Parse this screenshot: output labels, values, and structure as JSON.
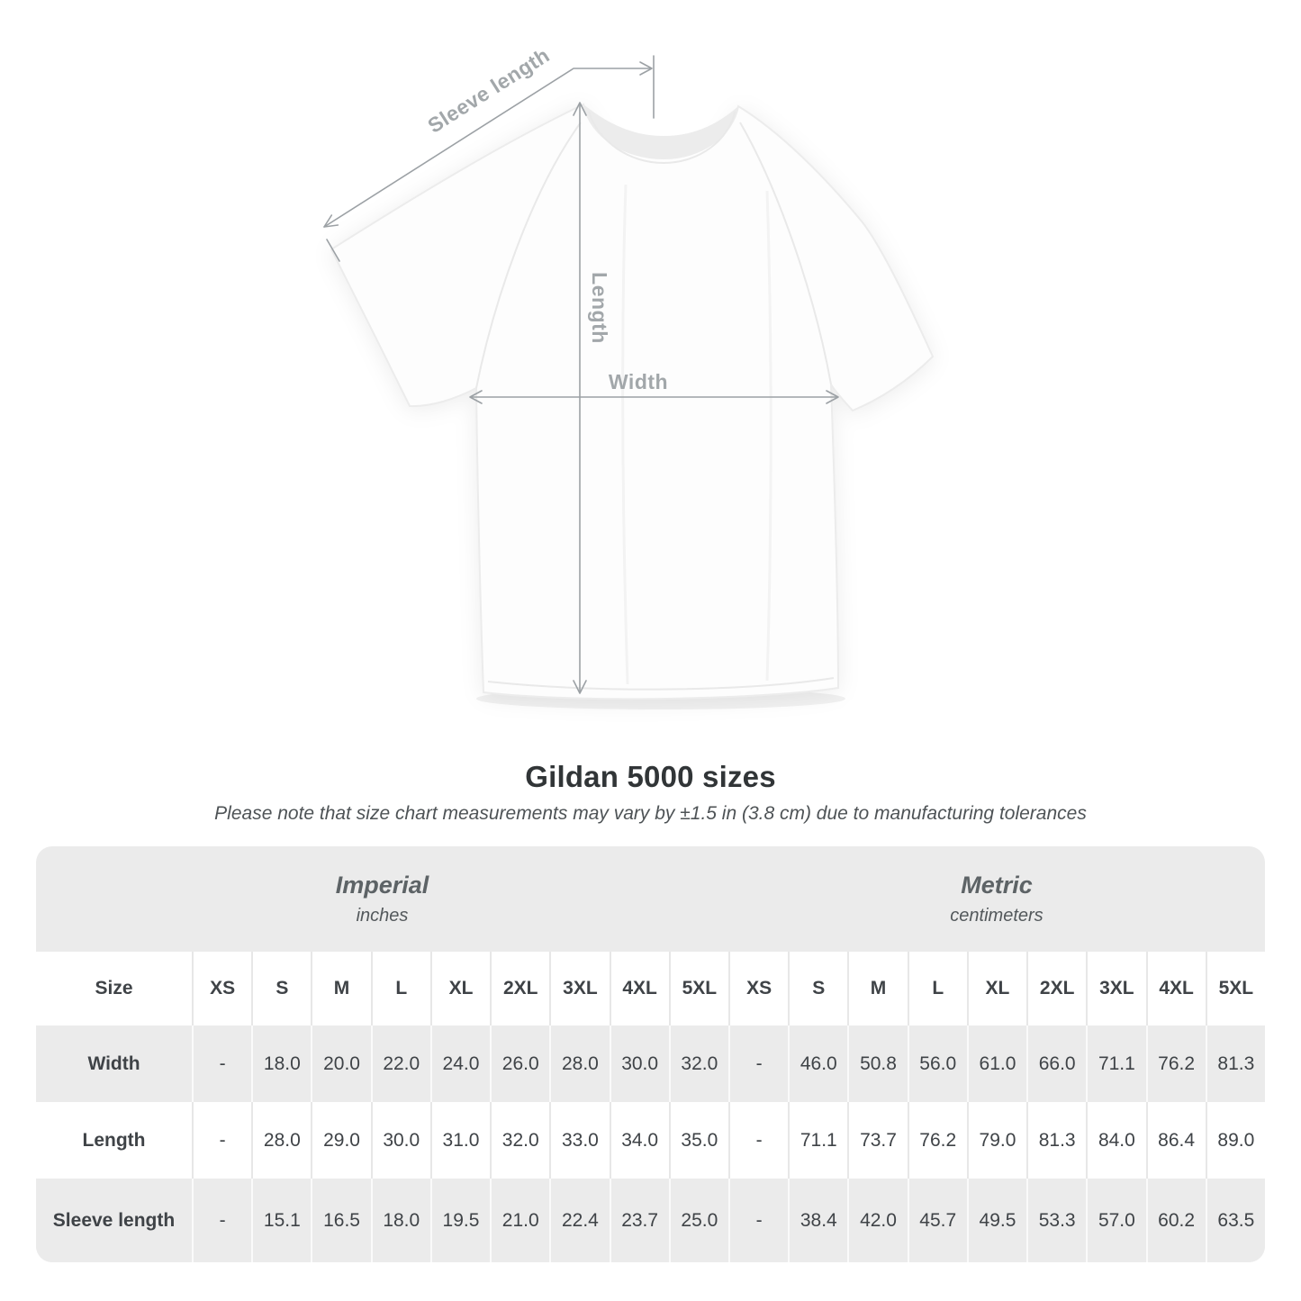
{
  "diagram": {
    "sleeve_label": "Sleeve length",
    "length_label": "Length",
    "width_label": "Width",
    "line_color": "#9ca1a5",
    "label_color": "#a2a7aa"
  },
  "colors": {
    "stripe_gray": "#ebebeb",
    "row_white": "#ffffff",
    "header_text": "#687074",
    "value_text": "#3f4347",
    "title_text": "#313537"
  },
  "chart_data": {
    "type": "table",
    "title": "Gildan 5000 sizes",
    "note": "Please note that size chart measurements may vary by ±1.5 in (3.8 cm) due to manufacturing tolerances",
    "row_header": "Size",
    "sizes": [
      "XS",
      "S",
      "M",
      "L",
      "XL",
      "2XL",
      "3XL",
      "4XL",
      "5XL"
    ],
    "unit_groups": [
      {
        "name": "Imperial",
        "unit": "inches"
      },
      {
        "name": "Metric",
        "unit": "centimeters"
      }
    ],
    "rows": [
      {
        "label": "Width",
        "imperial": [
          "-",
          "18.0",
          "20.0",
          "22.0",
          "24.0",
          "26.0",
          "28.0",
          "30.0",
          "32.0"
        ],
        "metric": [
          "-",
          "46.0",
          "50.8",
          "56.0",
          "61.0",
          "66.0",
          "71.1",
          "76.2",
          "81.3"
        ]
      },
      {
        "label": "Length",
        "imperial": [
          "-",
          "28.0",
          "29.0",
          "30.0",
          "31.0",
          "32.0",
          "33.0",
          "34.0",
          "35.0"
        ],
        "metric": [
          "-",
          "71.1",
          "73.7",
          "76.2",
          "79.0",
          "81.3",
          "84.0",
          "86.4",
          "89.0"
        ]
      },
      {
        "label": "Sleeve length",
        "imperial": [
          "-",
          "15.1",
          "16.5",
          "18.0",
          "19.5",
          "21.0",
          "22.4",
          "23.7",
          "25.0"
        ],
        "metric": [
          "-",
          "38.4",
          "42.0",
          "45.7",
          "49.5",
          "53.3",
          "57.0",
          "60.2",
          "63.5"
        ]
      }
    ]
  }
}
